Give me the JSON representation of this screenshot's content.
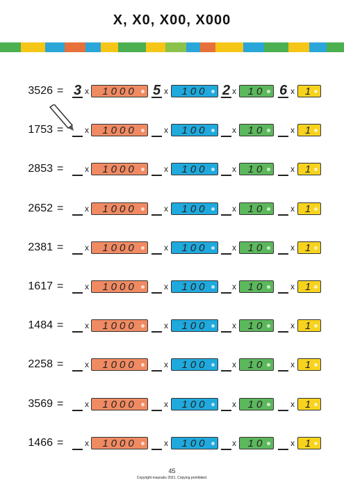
{
  "title": "X, X0, X00, X000",
  "cards": [
    "1000",
    "100",
    "10",
    "1"
  ],
  "times": "x",
  "equals": "=",
  "rows": [
    {
      "number": "3526",
      "answers": [
        "3",
        "5",
        "2",
        "6"
      ]
    },
    {
      "number": "1753"
    },
    {
      "number": "2853"
    },
    {
      "number": "2652"
    },
    {
      "number": "2381"
    },
    {
      "number": "1617"
    },
    {
      "number": "1484"
    },
    {
      "number": "2258"
    },
    {
      "number": "3569"
    },
    {
      "number": "1466"
    }
  ],
  "footer": {
    "page": "45",
    "copyright": "Copyright maunaks 2021. Copying prohibited."
  }
}
